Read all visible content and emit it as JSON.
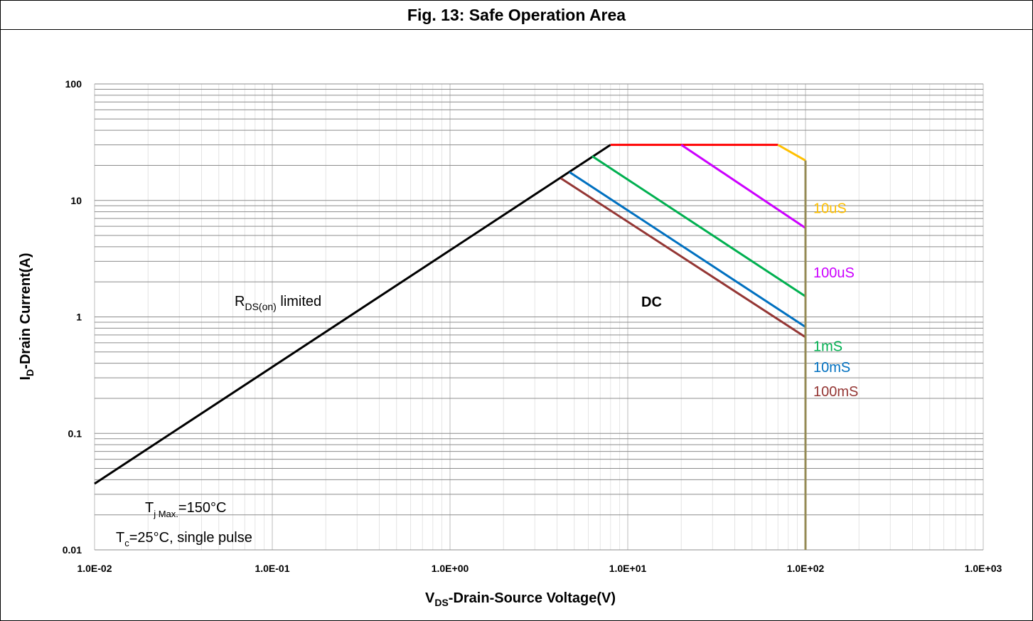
{
  "chart_data": {
    "type": "line",
    "title": "Fig. 13: Safe Operation Area",
    "xlabel": {
      "main": "V",
      "sub": "DS",
      "rest": "-Drain-Source Voltage(V)"
    },
    "ylabel": {
      "main": "I",
      "sub": "D",
      "rest": "-Drain Current(A)"
    },
    "xscale": "log",
    "yscale": "log",
    "xlim": [
      0.01,
      1000
    ],
    "ylim": [
      0.01,
      100
    ],
    "x_tick_labels": [
      "1.0E-02",
      "1.0E-01",
      "1.0E+00",
      "1.0E+01",
      "1.0E+02",
      "1.0E+03"
    ],
    "y_tick_labels": [
      "0.01",
      "0.1",
      "1",
      "10",
      "100"
    ],
    "grid": true,
    "series": [
      {
        "name": "RDS(on) limited",
        "color": "#000000",
        "points": [
          [
            0.01,
            0.037
          ],
          [
            8.0,
            30
          ]
        ]
      },
      {
        "name": "",
        "color": "#ff0000",
        "points": [
          [
            8.0,
            30
          ],
          [
            70,
            30
          ]
        ]
      },
      {
        "name": "10uS",
        "color": "#ffc000",
        "points": [
          [
            70,
            30
          ],
          [
            100,
            22
          ]
        ]
      },
      {
        "name": "100uS",
        "color": "#cc00ff",
        "points": [
          [
            20,
            30
          ],
          [
            100,
            5.8
          ]
        ]
      },
      {
        "name": "1mS",
        "color": "#00b050",
        "points": [
          [
            6.3,
            24
          ],
          [
            100,
            1.5
          ]
        ]
      },
      {
        "name": "10mS",
        "color": "#0070c0",
        "points": [
          [
            4.7,
            17.5
          ],
          [
            100,
            0.82
          ]
        ]
      },
      {
        "name": "100mS",
        "color": "#943634",
        "points": [
          [
            4.2,
            15.5
          ],
          [
            100,
            0.67
          ]
        ]
      },
      {
        "name": "",
        "color": "#948a54",
        "points": [
          [
            100,
            0.01
          ],
          [
            100,
            22
          ]
        ]
      }
    ],
    "annotations": {
      "rds": {
        "main": "R",
        "sub": "DS(on)",
        "rest": " limited"
      },
      "dc": "DC",
      "tj": {
        "main": "T",
        "sub": "j Max.",
        "rest": "=150°C"
      },
      "tc": {
        "main": "T",
        "sub": "c",
        "rest": "=25°C, single pulse"
      }
    }
  }
}
